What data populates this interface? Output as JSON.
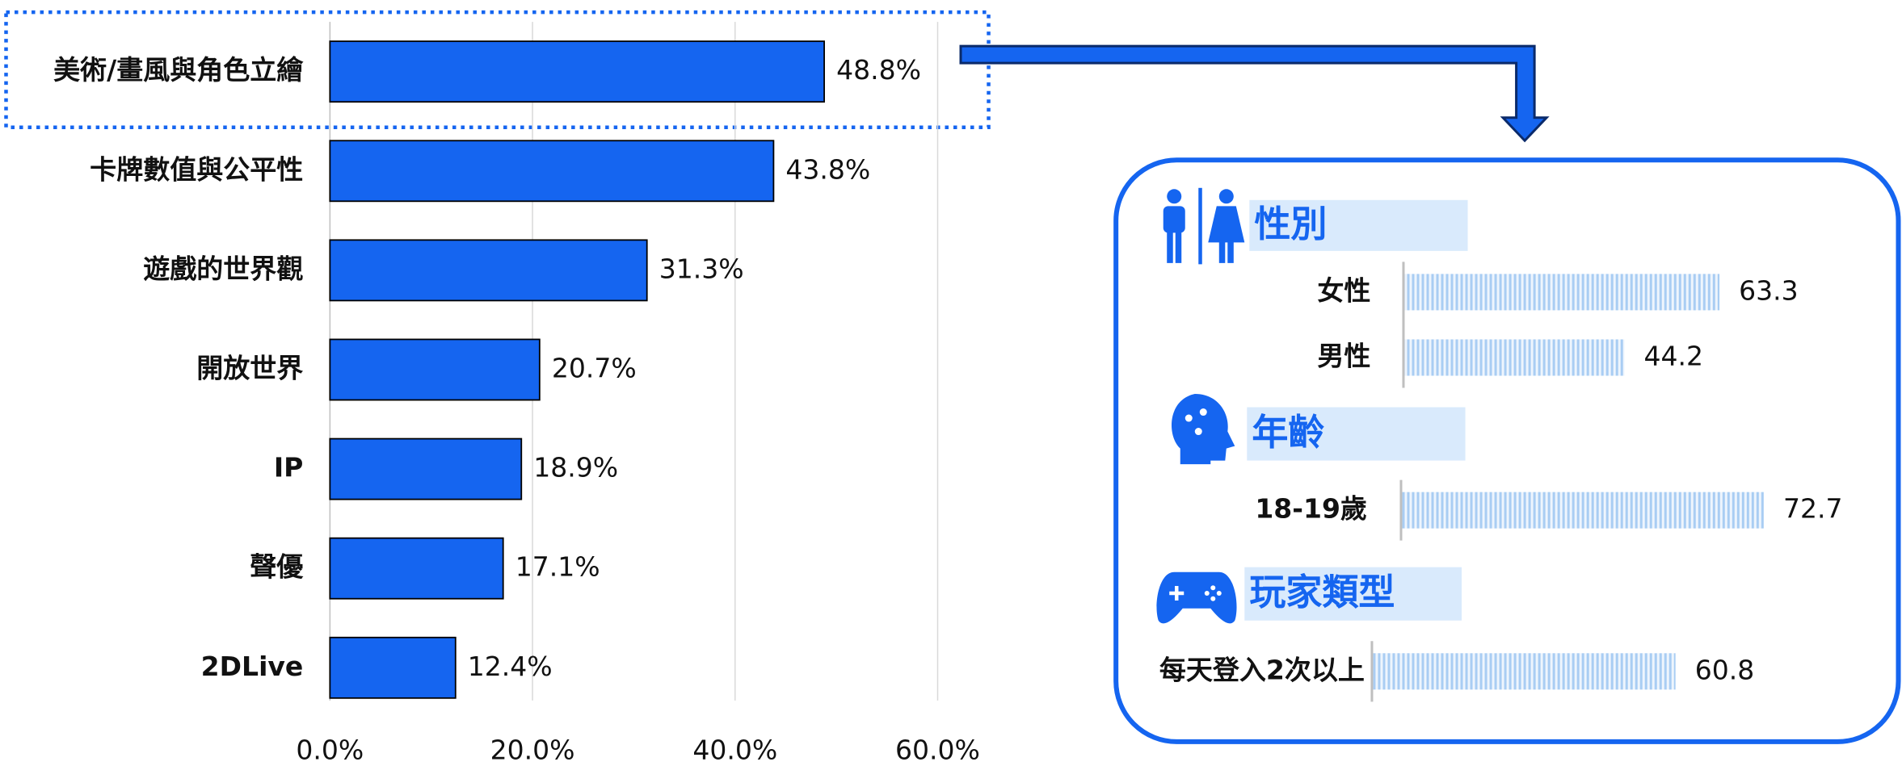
{
  "chart_data": {
    "type": "bar",
    "orientation": "horizontal",
    "categories": [
      "美術/畫風與角色立繪",
      "卡牌數值與公平性",
      "遊戲的世界觀",
      "開放世界",
      "IP",
      "聲優",
      "2DLive"
    ],
    "values": [
      48.8,
      43.8,
      31.3,
      20.7,
      18.9,
      17.1,
      12.4
    ],
    "value_labels": [
      "48.8%",
      "43.8%",
      "31.3%",
      "20.7%",
      "18.9%",
      "17.1%",
      "12.4%"
    ],
    "color": "#1565f0",
    "xlim": [
      0,
      60
    ],
    "xticks": [
      {
        "value": 0,
        "label": "0.0%"
      },
      {
        "value": 20,
        "label": "20.0%"
      },
      {
        "value": 40,
        "label": "40.0%"
      },
      {
        "value": 60,
        "label": "60.0%"
      }
    ],
    "grid": true
  },
  "panel": {
    "sections": [
      {
        "title": "性別",
        "items": [
          {
            "label": "女性",
            "value": 63.3
          },
          {
            "label": "男性",
            "value": 44.2
          }
        ]
      },
      {
        "title": "年齡",
        "items": [
          {
            "label": "18-19歲",
            "value": 72.7
          }
        ]
      },
      {
        "title": "玩家類型",
        "items": [
          {
            "label": "每天登入2次以上",
            "value": 60.8
          }
        ]
      }
    ]
  }
}
